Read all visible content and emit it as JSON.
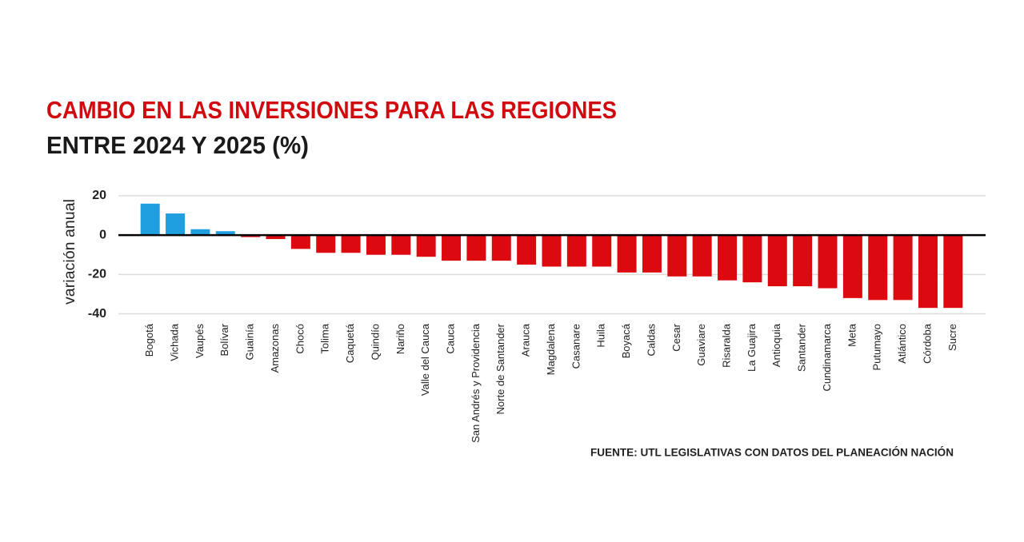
{
  "chart_data": {
    "type": "bar",
    "title": "CAMBIO EN LAS INVERSIONES PARA LAS REGIONES",
    "subtitle": "ENTRE 2024 Y 2025 (%)",
    "y_label": "variación anual",
    "source": "FUENTE: UTL LEGISLATIVAS CON DATOS DEL PLANEACIÓN NACIÓN",
    "categories": [
      "Bogotá",
      "Vichada",
      "Vaupés",
      "Bolívar",
      "Guainía",
      "Amazonas",
      "Chocó",
      "Tolima",
      "Caquetá",
      "Quindío",
      "Nariño",
      "Valle del Cauca",
      "Cauca",
      "San Andrés y Providencia",
      "Norte de Santander",
      "Arauca",
      "Magdalena",
      "Casanare",
      "Huila",
      "Boyacá",
      "Caldas",
      "Cesar",
      "Guaviare",
      "Risaralda",
      "La Guajira",
      "Antioquia",
      "Santander",
      "Cundinamarca",
      "Meta",
      "Putumayo",
      "Atlántico",
      "Córdoba",
      "Sucre"
    ],
    "values": [
      16,
      11,
      3,
      2,
      -1,
      -2,
      -7,
      -9,
      -9,
      -10,
      -10,
      -11,
      -13,
      -13,
      -13,
      -15,
      -16,
      -16,
      -16,
      -19,
      -19,
      -21,
      -21,
      -23,
      -24,
      -26,
      -26,
      -27,
      -32,
      -33,
      -33,
      -37,
      -37
    ],
    "colors": {
      "positive": "#1f9ee0",
      "negative": "#dc0a0f"
    },
    "ylim": [
      -41,
      22
    ],
    "yticks": [
      20,
      0,
      -20,
      -40
    ],
    "grid": true
  }
}
